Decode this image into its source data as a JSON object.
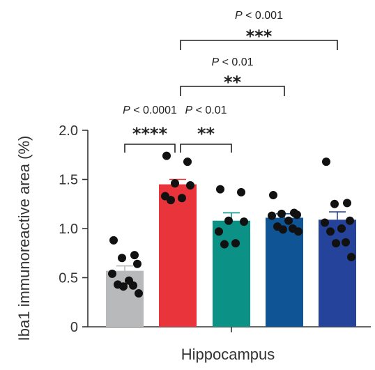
{
  "chart_data": {
    "type": "bar",
    "xlabel": "Hippocampus",
    "ylabel": "Iba1 immunoreactive area (%)",
    "ylim": [
      0,
      2.0
    ],
    "yticks": [
      "0",
      "0.5",
      "1.0",
      "1.5",
      "2.0"
    ],
    "ytick_values": [
      0,
      0.5,
      1.0,
      1.5,
      2.0
    ],
    "grid": false,
    "legend": "none",
    "groups": [
      {
        "mean": 0.57,
        "sem": 0.05,
        "color": "#b8b9bb",
        "points": [
          0.88,
          0.73,
          0.7,
          0.64,
          0.54,
          0.47,
          0.43,
          0.42,
          0.41,
          0.34
        ]
      },
      {
        "mean": 1.45,
        "sem": 0.05,
        "color": "#e8343a",
        "points": [
          1.74,
          1.68,
          1.46,
          1.44,
          1.33,
          1.31,
          1.29
        ]
      },
      {
        "mean": 1.08,
        "sem": 0.08,
        "color": "#0c9186",
        "points": [
          1.4,
          1.37,
          1.08,
          1.07,
          0.97,
          0.85,
          0.84
        ]
      },
      {
        "mean": 1.11,
        "sem": 0.04,
        "color": "#0f5596",
        "points": [
          1.34,
          1.16,
          1.15,
          1.14,
          1.13,
          1.08,
          1.02,
          1.0,
          0.99,
          0.97
        ]
      },
      {
        "mean": 1.09,
        "sem": 0.08,
        "color": "#25439a",
        "points": [
          1.68,
          1.26,
          1.25,
          1.08,
          1.06,
          1.0,
          0.97,
          0.86,
          0.85,
          0.71
        ]
      }
    ],
    "comparisons": [
      {
        "from": 0,
        "to": 1,
        "p_prefix": "P",
        "p_text": "< 0.0001",
        "stars": "****"
      },
      {
        "from": 1,
        "to": 2,
        "p_prefix": "P",
        "p_text": "< 0.01",
        "stars": "**"
      },
      {
        "from": 1,
        "to": 3,
        "p_prefix": "P",
        "p_text": "< 0.01",
        "stars": "**"
      },
      {
        "from": 1,
        "to": 4,
        "p_prefix": "P",
        "p_text": "< 0.001",
        "stars": "***"
      }
    ]
  }
}
